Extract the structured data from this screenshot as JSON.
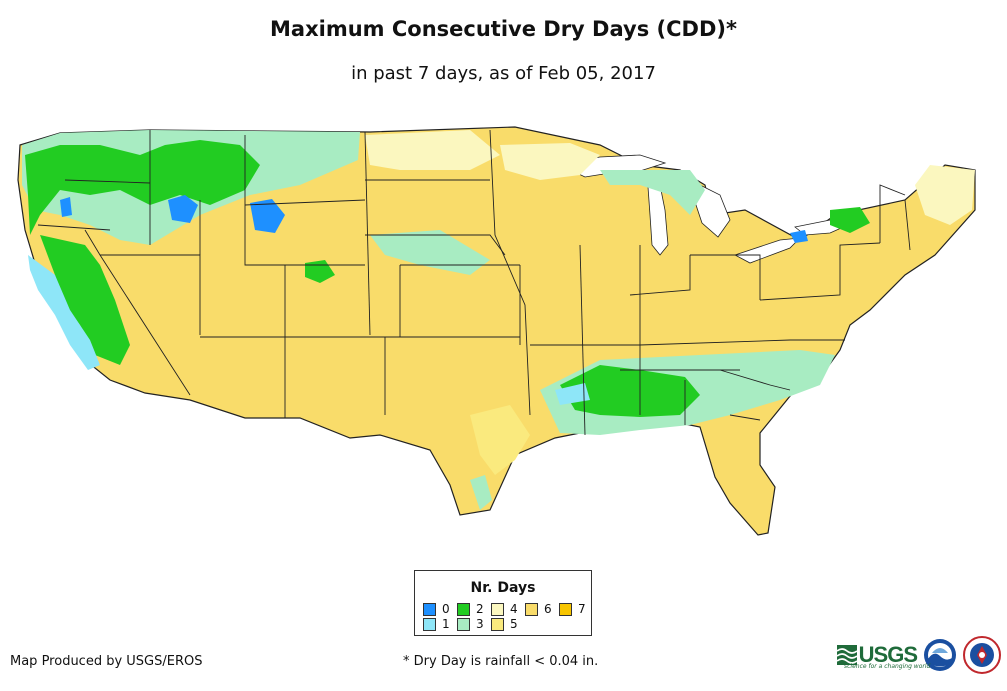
{
  "title": "Maximum Consecutive Dry Days (CDD)*",
  "subtitle": "in past 7 days, as of Feb 05, 2017",
  "legend": {
    "title": "Nr. Days",
    "items": [
      {
        "label": "0",
        "color": "#1e90ff"
      },
      {
        "label": "1",
        "color": "#8ee6f8"
      },
      {
        "label": "2",
        "color": "#22cc22"
      },
      {
        "label": "3",
        "color": "#a8ecc2"
      },
      {
        "label": "4",
        "color": "#fbf7bf"
      },
      {
        "label": "5",
        "color": "#faea7e"
      },
      {
        "label": "6",
        "color": "#f9dc6a"
      },
      {
        "label": "7",
        "color": "#f7c500"
      }
    ]
  },
  "footer": {
    "producer": "Map Produced by USGS/EROS",
    "note": "* Dry Day is rainfall < 0.04 in."
  },
  "logos": {
    "usgs": "USGS",
    "usgs_tagline": "science for a changing world",
    "noaa": "NOAA",
    "nws": "National Weather Service"
  }
}
